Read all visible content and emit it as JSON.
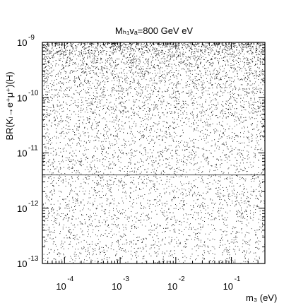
{
  "chart_data": {
    "type": "scatter",
    "title": "Mₕ₁vₐ=800 GeV eV",
    "xlabel": "m₃ (eV)",
    "ylabel": "BR(Kₗ→e⁺μ⁺)(H)",
    "x_scale": "log",
    "y_scale": "log",
    "xlim": [
      4e-05,
      0.4
    ],
    "ylim": [
      1e-13,
      1e-09
    ],
    "x_ticks": [
      {
        "base": "10",
        "exp": "-4",
        "value": 0.0001
      },
      {
        "base": "10",
        "exp": "-3",
        "value": 0.001
      },
      {
        "base": "10",
        "exp": "-2",
        "value": 0.01
      },
      {
        "base": "10",
        "exp": "-1",
        "value": 0.1
      }
    ],
    "y_ticks": [
      {
        "base": "10",
        "exp": "-9",
        "value": 1e-09
      },
      {
        "base": "10",
        "exp": "-10",
        "value": 1e-10
      },
      {
        "base": "10",
        "exp": "-11",
        "value": 1e-11
      },
      {
        "base": "10",
        "exp": "-12",
        "value": 1e-12
      },
      {
        "base": "10",
        "exp": "-13",
        "value": 1e-13
      }
    ],
    "hline": 4e-12,
    "point_count": 7000,
    "density_note": "points densest near top, sparser toward lower values",
    "grid": false,
    "colors": {
      "points": "#000000",
      "axes": "#000000",
      "line": "#444444"
    }
  }
}
